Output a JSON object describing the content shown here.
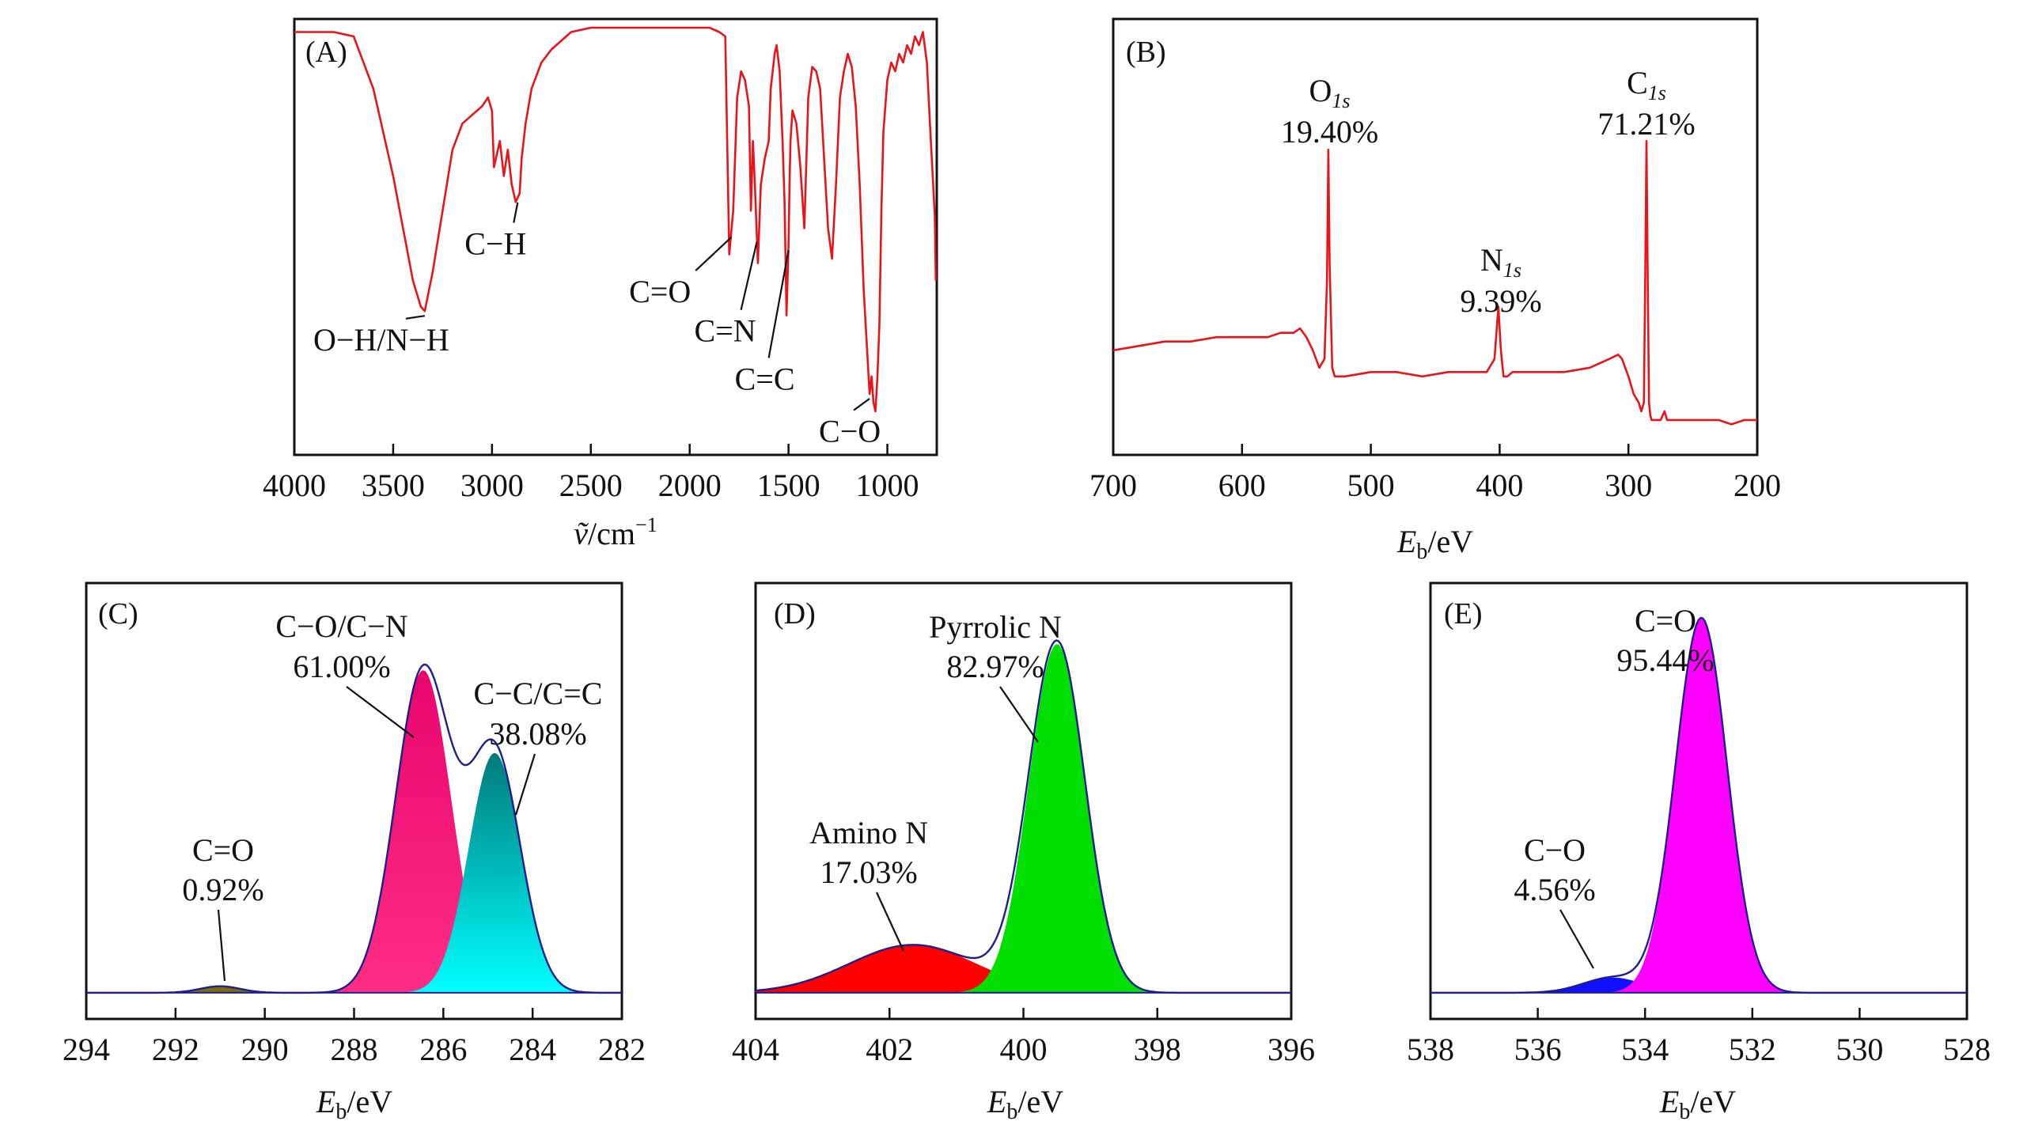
{
  "chart_data": [
    {
      "panel": "(A)",
      "type": "line",
      "xlabel_pre": "ṽ",
      "xlabel_post": "/cm",
      "xlabel_sup": "−1",
      "xlim": [
        4000,
        750
      ],
      "xticks": [
        4000,
        3500,
        3000,
        2500,
        2000,
        1500,
        1000
      ],
      "line_color": "#e8141a",
      "series": [
        {
          "x": [
            4000,
            3800,
            3700,
            3600,
            3500,
            3450,
            3400,
            3360,
            3340,
            3300,
            3250,
            3200,
            3150,
            3100,
            3050,
            3020,
            3000,
            2990,
            2960,
            2940,
            2920,
            2900,
            2880,
            2860,
            2850,
            2830,
            2800,
            2750,
            2700,
            2650,
            2600,
            2500,
            2400,
            2300,
            2200,
            2100,
            2000,
            1900,
            1850,
            1820,
            1800,
            1780,
            1760,
            1740,
            1720,
            1700,
            1690,
            1680,
            1670,
            1655,
            1640,
            1620,
            1600,
            1590,
            1570,
            1560,
            1545,
            1530,
            1520,
            1510,
            1500,
            1495,
            1490,
            1480,
            1460,
            1440,
            1420,
            1400,
            1380,
            1360,
            1340,
            1320,
            1300,
            1280,
            1260,
            1240,
            1220,
            1200,
            1180,
            1160,
            1140,
            1120,
            1100,
            1090,
            1080,
            1070,
            1060,
            1050,
            1040,
            1030,
            1020,
            1000,
            980,
            960,
            940,
            920,
            900,
            880,
            860,
            840,
            820,
            800,
            780,
            760,
            755
          ],
          "y": [
            0.97,
            0.97,
            0.96,
            0.84,
            0.64,
            0.52,
            0.4,
            0.34,
            0.33,
            0.42,
            0.56,
            0.7,
            0.76,
            0.78,
            0.8,
            0.82,
            0.79,
            0.66,
            0.72,
            0.64,
            0.7,
            0.62,
            0.58,
            0.6,
            0.68,
            0.76,
            0.84,
            0.9,
            0.93,
            0.95,
            0.97,
            0.98,
            0.98,
            0.98,
            0.98,
            0.98,
            0.98,
            0.98,
            0.97,
            0.96,
            0.46,
            0.56,
            0.82,
            0.88,
            0.86,
            0.8,
            0.56,
            0.72,
            0.62,
            0.44,
            0.62,
            0.68,
            0.72,
            0.84,
            0.92,
            0.94,
            0.88,
            0.72,
            0.58,
            0.32,
            0.48,
            0.62,
            0.72,
            0.79,
            0.76,
            0.66,
            0.52,
            0.82,
            0.89,
            0.88,
            0.84,
            0.68,
            0.52,
            0.45,
            0.62,
            0.82,
            0.88,
            0.92,
            0.89,
            0.8,
            0.62,
            0.38,
            0.22,
            0.14,
            0.18,
            0.12,
            0.1,
            0.18,
            0.3,
            0.56,
            0.74,
            0.86,
            0.9,
            0.88,
            0.92,
            0.9,
            0.94,
            0.92,
            0.96,
            0.94,
            0.97,
            0.9,
            0.72,
            0.55,
            0.4
          ]
        }
      ],
      "annotations": [
        {
          "text": "O−H/N−H",
          "x": 3340
        },
        {
          "text": "C−H",
          "x": 2870
        },
        {
          "text": "C=O",
          "x": 1790
        },
        {
          "text": "C=N",
          "x": 1660
        },
        {
          "text": "C=C",
          "x": 1500
        },
        {
          "text": "C−O",
          "x": 1090
        }
      ]
    },
    {
      "panel": "(B)",
      "type": "line",
      "xlabel_main": "E",
      "xlabel_sub": "b",
      "xlabel_post": "/eV",
      "xlim": [
        700,
        200
      ],
      "xticks": [
        700,
        600,
        500,
        400,
        300,
        200
      ],
      "line_color": "#e8141a",
      "series": [
        {
          "x": [
            700,
            680,
            660,
            640,
            620,
            600,
            580,
            570,
            560,
            555,
            550,
            545,
            540,
            536,
            534,
            533,
            532,
            530,
            528,
            525,
            520,
            500,
            480,
            460,
            440,
            420,
            410,
            404,
            401,
            399,
            397,
            394,
            390,
            370,
            350,
            330,
            315,
            308,
            305,
            300,
            296,
            292,
            290,
            288,
            287,
            286,
            285,
            284,
            283,
            282,
            280,
            275,
            272,
            270,
            260,
            250,
            240,
            230,
            220,
            210,
            200
          ],
          "y": [
            0.24,
            0.25,
            0.26,
            0.26,
            0.27,
            0.27,
            0.27,
            0.28,
            0.28,
            0.29,
            0.27,
            0.24,
            0.2,
            0.22,
            0.4,
            0.7,
            0.44,
            0.2,
            0.18,
            0.18,
            0.18,
            0.19,
            0.19,
            0.18,
            0.19,
            0.19,
            0.19,
            0.22,
            0.34,
            0.24,
            0.18,
            0.18,
            0.19,
            0.19,
            0.19,
            0.2,
            0.22,
            0.23,
            0.22,
            0.18,
            0.14,
            0.12,
            0.1,
            0.12,
            0.4,
            0.72,
            0.4,
            0.12,
            0.09,
            0.08,
            0.08,
            0.08,
            0.1,
            0.08,
            0.08,
            0.08,
            0.08,
            0.08,
            0.07,
            0.08,
            0.08
          ]
        }
      ],
      "annotations": [
        {
          "main": "O",
          "sub": "1s",
          "pct": "19.40%",
          "x": 532
        },
        {
          "main": "N",
          "sub": "1s",
          "pct": "9.39%",
          "x": 399
        },
        {
          "main": "C",
          "sub": "1s",
          "pct": "71.21%",
          "x": 286
        }
      ]
    },
    {
      "panel": "(C)",
      "type": "area",
      "xlabel_main": "E",
      "xlabel_sub": "b",
      "xlabel_post": "/eV",
      "xlim": [
        294,
        282
      ],
      "xticks": [
        294,
        292,
        290,
        288,
        286,
        284,
        282
      ],
      "baseline": 0.06,
      "envelope_color": "#1f1f8c",
      "series": [
        {
          "name": "C=O",
          "pct": "0.92%",
          "center": 291.0,
          "height": 0.015,
          "width": 0.45,
          "fill": [
            "#7a6a10",
            "#8a7a20"
          ]
        },
        {
          "name": "C−O/C−N",
          "pct": "61.00%",
          "center": 286.45,
          "height": 0.74,
          "width": 0.62,
          "fill": [
            "#e8066e",
            "#ff2d86"
          ]
        },
        {
          "name": "C−C/C=C",
          "pct": "38.08%",
          "center": 284.85,
          "height": 0.55,
          "width": 0.58,
          "fill": [
            "#007a7a",
            "#00ffff"
          ]
        }
      ],
      "annotations": [
        {
          "line1": "C=O",
          "line2": "0.92%"
        },
        {
          "line1": "C−O/C−N",
          "line2": "61.00%"
        },
        {
          "line1": "C−C/C=C",
          "line2": "38.08%"
        }
      ]
    },
    {
      "panel": "(D)",
      "type": "area",
      "xlabel_main": "E",
      "xlabel_sub": "b",
      "xlabel_post": "/eV",
      "xlim": [
        404,
        396
      ],
      "xticks": [
        404,
        402,
        400,
        398,
        396
      ],
      "baseline": 0.06,
      "envelope_color": "#1f1f8c",
      "series": [
        {
          "name": "Amino N",
          "pct": "17.03%",
          "center": 401.65,
          "height": 0.11,
          "width": 0.95,
          "fill": [
            "#ff0000",
            "#ff1a1a"
          ]
        },
        {
          "name": "Pyrrolic N",
          "pct": "82.97%",
          "center": 399.5,
          "height": 0.8,
          "width": 0.42,
          "fill": [
            "#00e000",
            "#00ff00"
          ]
        }
      ],
      "annotations": [
        {
          "line1": "Amino N",
          "line2": "17.03%"
        },
        {
          "line1": "Pyrrolic N",
          "line2": "82.97%"
        }
      ]
    },
    {
      "panel": "(E)",
      "type": "area",
      "xlabel_main": "E",
      "xlabel_sub": "b",
      "xlabel_post": "/eV",
      "xlim": [
        538,
        528
      ],
      "xticks": [
        538,
        536,
        534,
        532,
        530,
        528
      ],
      "baseline": 0.06,
      "envelope_color": "#1f1f8c",
      "series": [
        {
          "name": "C−O",
          "pct": "4.56%",
          "center": 534.6,
          "height": 0.035,
          "width": 0.55,
          "fill": [
            "#1010ff",
            "#2a2aff"
          ]
        },
        {
          "name": "C=O",
          "pct": "95.44%",
          "center": 532.95,
          "height": 0.86,
          "width": 0.48,
          "fill": [
            "#ff00ff",
            "#ff1aff"
          ]
        }
      ],
      "annotations": [
        {
          "line1": "C−O",
          "line2": "4.56%"
        },
        {
          "line1": "C=O",
          "line2": "95.44%"
        }
      ]
    }
  ]
}
